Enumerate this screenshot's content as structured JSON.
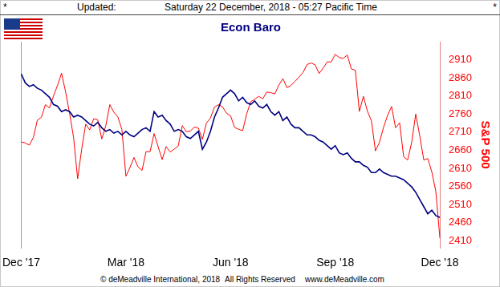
{
  "page": {
    "header": {
      "left": "*",
      "label": "Updated:",
      "timestamp": "Saturday 22 December, 2018 - 05:27 Pacific Time",
      "right": "*"
    },
    "footer": [
      "© deMeadville International, 2018",
      "All Rights Reserved",
      "www.deMeadville.com"
    ]
  },
  "chart_data": {
    "type": "line",
    "title": "Econ Baro",
    "y2_label": "S&P 500",
    "grid": false,
    "categories": [
      "Dec '17",
      null,
      null,
      null,
      null,
      null,
      null,
      null,
      null,
      null,
      null,
      null,
      null,
      null,
      null,
      null,
      null,
      null,
      null,
      null,
      null,
      null,
      null,
      null,
      null,
      null,
      "Mar '18",
      null,
      null,
      null,
      null,
      null,
      null,
      null,
      null,
      null,
      null,
      null,
      null,
      null,
      null,
      null,
      null,
      null,
      null,
      null,
      null,
      null,
      null,
      null,
      null,
      null,
      "Jun '18",
      null,
      null,
      null,
      null,
      null,
      null,
      null,
      null,
      null,
      null,
      null,
      null,
      null,
      null,
      null,
      null,
      null,
      null,
      null,
      null,
      null,
      null,
      null,
      null,
      null,
      "Sep '18",
      null,
      null,
      null,
      null,
      null,
      null,
      null,
      null,
      null,
      null,
      null,
      null,
      null,
      null,
      null,
      null,
      null,
      null,
      null,
      null,
      null,
      null,
      null,
      null,
      null,
      "Dec '18"
    ],
    "ylim": [
      -5,
      110
    ],
    "yticks": [],
    "y2lim": [
      2390,
      2960
    ],
    "y2ticks": [
      2410,
      2460,
      2510,
      2560,
      2610,
      2660,
      2710,
      2760,
      2810,
      2860,
      2910
    ],
    "series": [
      {
        "name": "Econ Baro",
        "color": "#000080",
        "values": [
          92,
          87,
          85,
          86,
          84,
          83,
          81,
          79,
          75,
          74,
          71,
          72,
          71,
          68,
          69,
          68,
          66,
          64,
          63,
          65,
          62,
          60,
          61,
          59,
          60,
          58,
          60,
          58,
          57,
          59,
          61,
          62,
          60,
          71,
          68,
          69,
          66,
          64,
          60,
          61,
          60,
          57,
          56,
          58,
          60,
          50,
          54,
          60,
          68,
          73,
          79,
          81,
          83,
          81,
          77,
          79,
          76,
          75,
          77,
          74,
          73,
          75,
          71,
          69,
          71,
          66,
          68,
          64,
          62,
          62,
          60,
          58,
          58,
          57,
          55,
          54,
          52,
          50,
          52,
          48,
          47,
          48,
          45,
          43,
          43,
          41,
          40,
          37,
          37,
          39,
          37,
          36,
          35,
          35,
          34,
          33,
          31,
          29,
          26,
          22,
          18,
          14,
          16,
          13,
          12
        ]
      },
      {
        "name": "S&P 500",
        "color": "#ff0000",
        "axis": "y2",
        "values": [
          2683,
          2680,
          2674,
          2695,
          2743,
          2751,
          2786,
          2777,
          2810,
          2839,
          2873,
          2822,
          2762,
          2695,
          2581,
          2662,
          2732,
          2716,
          2747,
          2744,
          2691,
          2728,
          2786,
          2765,
          2752,
          2717,
          2588,
          2612,
          2640,
          2614,
          2604,
          2656,
          2656,
          2706,
          2670,
          2634,
          2670,
          2655,
          2663,
          2672,
          2728,
          2711,
          2713,
          2724,
          2721,
          2690,
          2735,
          2749,
          2779,
          2786,
          2780,
          2762,
          2755,
          2723,
          2718,
          2714,
          2760,
          2794,
          2801,
          2809,
          2802,
          2821,
          2819,
          2816,
          2840,
          2858,
          2833,
          2839,
          2850,
          2862,
          2875,
          2897,
          2901,
          2896,
          2872,
          2887,
          2904,
          2904,
          2925,
          2916,
          2914,
          2923,
          2885,
          2881,
          2767,
          2809,
          2768,
          2741,
          2658,
          2682,
          2723,
          2756,
          2781,
          2722,
          2736,
          2642,
          2633,
          2682,
          2760,
          2700,
          2633,
          2637,
          2600,
          2546,
          2417
        ]
      }
    ]
  }
}
